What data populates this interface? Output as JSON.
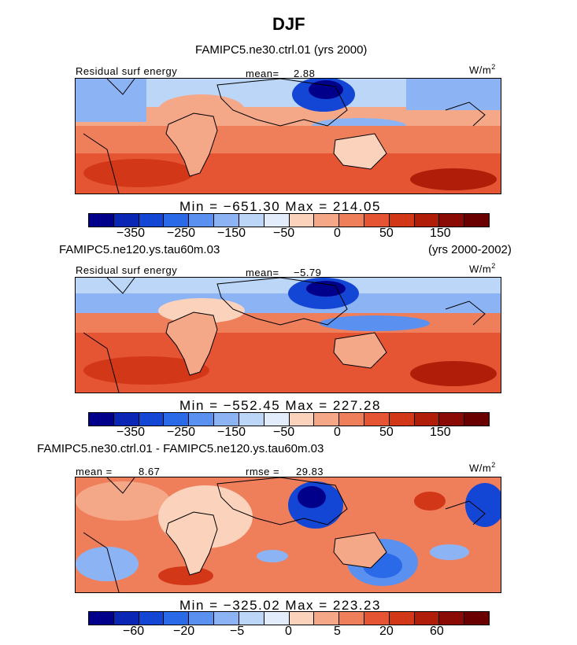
{
  "title": "DJF",
  "panel1": {
    "subtitle": "FAMIPC5.ne30.ctrl.01 (yrs 2000)",
    "left_label": "Residual surf energy",
    "mean_label": "mean=",
    "mean_value": "2.88",
    "units_base": "W/m",
    "units_exp": "2",
    "minmax": "Min = −651.30  Max = 214.05",
    "ticks": [
      "−350",
      "−250",
      "−150",
      "−50",
      "0",
      "50",
      "150"
    ]
  },
  "panel2": {
    "case_label": "FAMIPC5.ne120.ys.tau60m.03",
    "years_label": "(yrs 2000-2002)",
    "left_label": "Residual surf energy",
    "mean_label": "mean=",
    "mean_value": "−5.79",
    "units_base": "W/m",
    "units_exp": "2",
    "minmax": "Min = −552.45  Max = 227.28",
    "ticks": [
      "−350",
      "−250",
      "−150",
      "−50",
      "0",
      "50",
      "150"
    ]
  },
  "panel3": {
    "diff_label": "FAMIPC5.ne30.ctrl.01 - FAMIPC5.ne120.ys.tau60m.03",
    "mean_label": "mean =",
    "mean_value": "8.67",
    "rmse_label": "rmse =",
    "rmse_value": "29.83",
    "units_base": "W/m",
    "units_exp": "2",
    "minmax": "Min = −325.02  Max = 223.23",
    "ticks": [
      "−60",
      "−20",
      "−5",
      "0",
      "5",
      "20",
      "60"
    ]
  },
  "colors": [
    "#00008b",
    "#0a26b4",
    "#1446d6",
    "#2a6ae8",
    "#5a90f0",
    "#8cb4f4",
    "#bcd6f8",
    "#e2ecfa",
    "#fbd2bc",
    "#f5a888",
    "#ef7f5b",
    "#e65533",
    "#d23818",
    "#b01e0a",
    "#8a0b05",
    "#6a0000"
  ]
}
